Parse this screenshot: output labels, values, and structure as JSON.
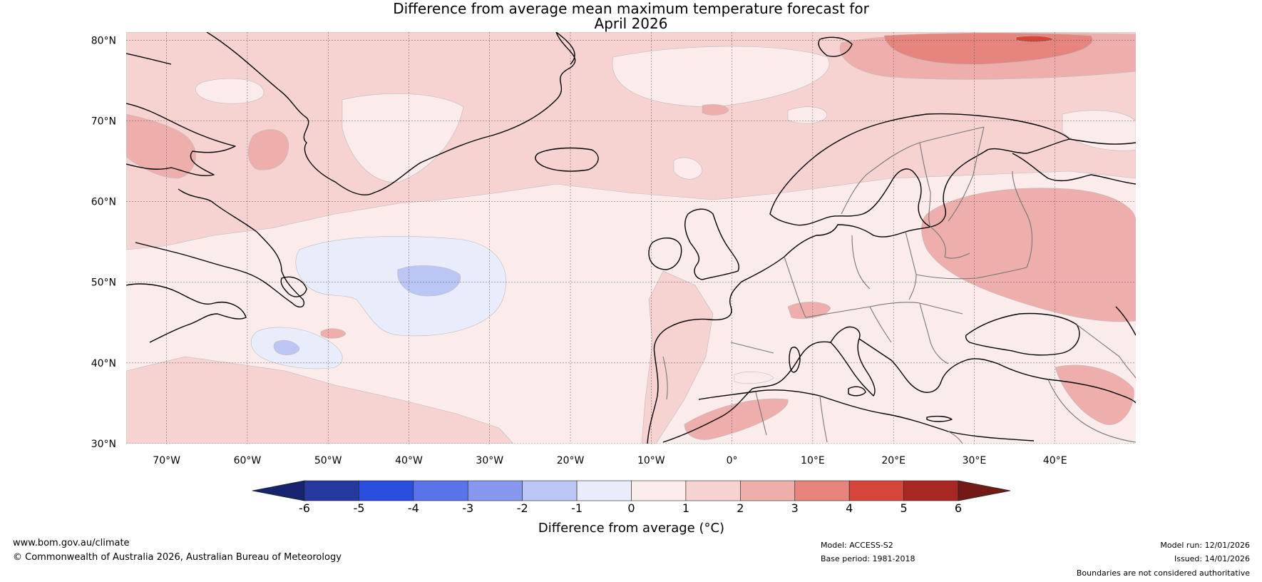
{
  "title": {
    "line1": "Difference from average mean maximum temperature forecast for",
    "line2": "April 2026"
  },
  "map": {
    "lat_labels": [
      "80°N",
      "70°N",
      "60°N",
      "50°N",
      "40°N",
      "30°N"
    ],
    "lon_labels": [
      "70°W",
      "60°W",
      "50°W",
      "40°W",
      "30°W",
      "20°W",
      "10°W",
      "0°",
      "10°E",
      "20°E",
      "30°E",
      "40°E"
    ],
    "lon_range": [
      -75,
      50
    ],
    "lat_range": [
      30,
      81
    ],
    "background_anomaly_class": "0 to 1",
    "colors": {
      "ocean_base": "#fbeceb",
      "land_base": "#f6d3d1",
      "class_neg2_neg1": "#e8ecfb",
      "class_neg3_neg2": "#bcc6f4",
      "class_1_2": "#f6d3d1",
      "class_2_3": "#eeaeab",
      "class_3_4": "#e6847e",
      "class_4_5": "#d7463a"
    }
  },
  "colorbar": {
    "ticks": [
      "-6",
      "-5",
      "-4",
      "-3",
      "-2",
      "-1",
      "0",
      "1",
      "2",
      "3",
      "4",
      "5",
      "6"
    ],
    "colors": [
      "#26399e",
      "#2a4fe0",
      "#5a73e8",
      "#8598ee",
      "#bcc6f4",
      "#e8ecfb",
      "#fbeceb",
      "#f6d3d1",
      "#eeaeab",
      "#e6847e",
      "#d7463a",
      "#aa2823"
    ],
    "under_color": "#14246e",
    "over_color": "#731a16",
    "label": "Difference from average (°C)"
  },
  "footer": {
    "website": "www.bom.gov.au/climate",
    "copyright": "© Commonwealth of Australia 2026, Australian Bureau of Meteorology",
    "model": "Model: ACCESS-S2",
    "base_period": "Base period: 1981-2018",
    "model_run": "Model run: 12/01/2026",
    "issued": "Issued: 14/01/2026",
    "disclaimer": "Boundaries are not considered authoritative"
  }
}
